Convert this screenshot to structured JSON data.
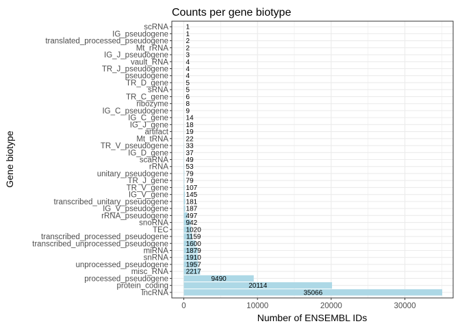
{
  "chart_data": {
    "type": "bar",
    "orientation": "horizontal",
    "title": "Counts per gene biotype",
    "xlabel": "Number of ENSEMBL IDs",
    "ylabel": "Gene biotype",
    "xlim": [
      0,
      36800
    ],
    "xticks": [
      0,
      10000,
      20000,
      30000
    ],
    "grid": true,
    "bar_color": "#add8e6",
    "categories": [
      "scRNA",
      "IG_pseudogene",
      "translated_processed_pseudogene",
      "Mt_rRNA",
      "IG_J_pseudogene",
      "vault_RNA",
      "TR_J_pseudogene",
      "pseudogene",
      "TR_D_gene",
      "sRNA",
      "TR_C_gene",
      "ribozyme",
      "IG_C_pseudogene",
      "IG_C_gene",
      "IG_J_gene",
      "artifact",
      "Mt_tRNA",
      "TR_V_pseudogene",
      "IG_D_gene",
      "scaRNA",
      "rRNA",
      "unitary_pseudogene",
      "TR_J_gene",
      "TR_V_gene",
      "IG_V_gene",
      "transcribed_unitary_pseudogene",
      "IG_V_pseudogene",
      "rRNA_pseudogene",
      "snoRNA",
      "TEC",
      "transcribed_processed_pseudogene",
      "transcribed_unprocessed_pseudogene",
      "miRNA",
      "snRNA",
      "unprocessed_pseudogene",
      "misc_RNA",
      "processed_pseudogene",
      "protein_coding",
      "lncRNA"
    ],
    "values": [
      1,
      1,
      2,
      2,
      3,
      4,
      4,
      4,
      5,
      5,
      6,
      8,
      9,
      14,
      18,
      19,
      22,
      33,
      37,
      49,
      53,
      79,
      79,
      107,
      145,
      181,
      187,
      497,
      942,
      1020,
      1159,
      1600,
      1879,
      1910,
      1957,
      2217,
      9490,
      20114,
      35066
    ]
  }
}
